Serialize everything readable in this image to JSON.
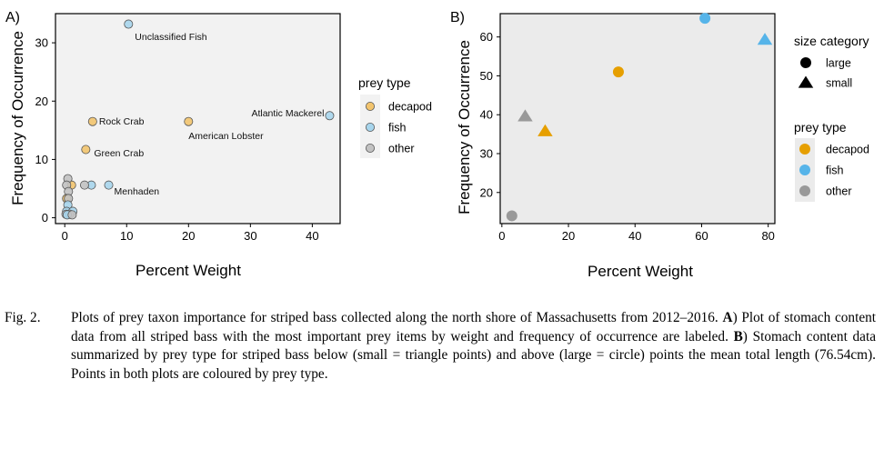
{
  "colors": {
    "decapod_light": "#f2c46e",
    "fish_light": "#a7d5ec",
    "other_light": "#c2c2c2",
    "decapod": "#e69f00",
    "fish": "#56b4e9",
    "other": "#999999",
    "panel_a_bg": "#f2f2f2",
    "panel_b_bg": "#ebebeb"
  },
  "chart_data": [
    {
      "type": "scatter",
      "panel_label": "A)",
      "xlabel": "Percent Weight",
      "ylabel": "Frequency of Occurrence",
      "xlim": [
        -1.5,
        44.5
      ],
      "ylim": [
        -1,
        35
      ],
      "xticks": [
        0,
        10,
        20,
        30,
        40
      ],
      "yticks": [
        0,
        10,
        20,
        30
      ],
      "legend": {
        "title": "prey type",
        "placement": "right",
        "entries": [
          {
            "label": "decapod",
            "color_key": "decapod_light"
          },
          {
            "label": "fish",
            "color_key": "fish_light"
          },
          {
            "label": "other",
            "color_key": "other_light"
          }
        ]
      },
      "points": [
        {
          "x": 10.3,
          "y": 33.2,
          "type": "fish",
          "label": "Unclassified Fish"
        },
        {
          "x": 42.8,
          "y": 17.5,
          "type": "fish",
          "label": "Atlantic Mackerel"
        },
        {
          "x": 20.0,
          "y": 16.5,
          "type": "decapod",
          "label": "American Lobster"
        },
        {
          "x": 4.5,
          "y": 16.5,
          "type": "decapod",
          "label": "Rock Crab"
        },
        {
          "x": 3.4,
          "y": 11.7,
          "type": "decapod",
          "label": "Green Crab"
        },
        {
          "x": 7.1,
          "y": 5.6,
          "type": "fish",
          "label": "Menhaden"
        },
        {
          "x": 4.3,
          "y": 5.6,
          "type": "fish",
          "label": ""
        },
        {
          "x": 3.2,
          "y": 5.6,
          "type": "other",
          "label": ""
        },
        {
          "x": 1.1,
          "y": 5.6,
          "type": "decapod",
          "label": ""
        },
        {
          "x": 0.5,
          "y": 6.7,
          "type": "other",
          "label": ""
        },
        {
          "x": 0.3,
          "y": 5.6,
          "type": "other",
          "label": ""
        },
        {
          "x": 0.6,
          "y": 4.5,
          "type": "other",
          "label": ""
        },
        {
          "x": 0.3,
          "y": 3.3,
          "type": "decapod",
          "label": ""
        },
        {
          "x": 0.6,
          "y": 3.3,
          "type": "other",
          "label": ""
        },
        {
          "x": 0.5,
          "y": 2.2,
          "type": "fish",
          "label": ""
        },
        {
          "x": 0.3,
          "y": 1.1,
          "type": "fish",
          "label": ""
        },
        {
          "x": 1.3,
          "y": 1.1,
          "type": "fish",
          "label": ""
        },
        {
          "x": 0.2,
          "y": 0.6,
          "type": "other",
          "label": ""
        },
        {
          "x": 0.8,
          "y": 0.6,
          "type": "other",
          "label": ""
        },
        {
          "x": 0.4,
          "y": 0.5,
          "type": "fish",
          "label": ""
        },
        {
          "x": 1.2,
          "y": 0.5,
          "type": "other",
          "label": ""
        }
      ]
    },
    {
      "type": "scatter",
      "panel_label": "B)",
      "xlabel": "Percent Weight",
      "ylabel": "Frequency of Occurrence",
      "xlim": [
        -0.5,
        82
      ],
      "ylim": [
        12,
        66
      ],
      "xticks": [
        0,
        20,
        40,
        60,
        80
      ],
      "yticks": [
        20,
        30,
        40,
        50,
        60
      ],
      "legend_size": {
        "title": "size category",
        "entries": [
          {
            "label": "large",
            "shape": "circle"
          },
          {
            "label": "small",
            "shape": "triangle"
          }
        ]
      },
      "legend": {
        "title": "prey type",
        "placement": "right",
        "entries": [
          {
            "label": "decapod",
            "color_key": "decapod"
          },
          {
            "label": "fish",
            "color_key": "fish"
          },
          {
            "label": "other",
            "color_key": "other"
          }
        ]
      },
      "points": [
        {
          "x": 61,
          "y": 64.8,
          "type": "fish",
          "size": "large"
        },
        {
          "x": 79,
          "y": 59.3,
          "type": "fish",
          "size": "small"
        },
        {
          "x": 35,
          "y": 51,
          "type": "decapod",
          "size": "large"
        },
        {
          "x": 7,
          "y": 39.6,
          "type": "other",
          "size": "small"
        },
        {
          "x": 13,
          "y": 35.8,
          "type": "decapod",
          "size": "small"
        },
        {
          "x": 3,
          "y": 14,
          "type": "other",
          "size": "large"
        }
      ]
    }
  ],
  "caption": {
    "label": "Fig. 2.",
    "text_html": "Plots of prey taxon importance for striped bass collected along the north shore of Massachusetts from 2012–2016. <b>A</b>) Plot of stomach content data from all striped bass with the most important prey items by weight and frequency of occurrence are labeled. <b>B</b>) Stomach content data summarized by prey type for striped bass below (small = triangle points) and above (large = circle) points the mean total length (76.54cm). Points in both plots are coloured by prey type."
  }
}
